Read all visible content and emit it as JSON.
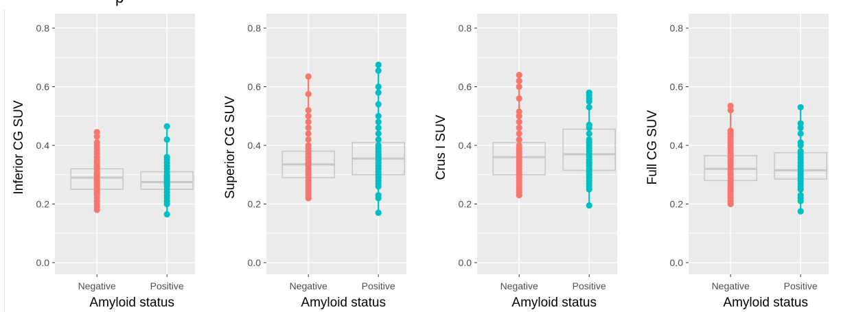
{
  "figure": {
    "header_fragment": "p"
  },
  "colors": {
    "negative": "#F8766D",
    "positive": "#00BFC4",
    "panel_bg": "#EBEBEB",
    "grid": "#FFFFFF",
    "box": "#C8C8C8",
    "tick_text": "#4D4D4D"
  },
  "chart_data": [
    {
      "type": "box-strip",
      "xlabel": "Amyloid status",
      "ylabel": "Inferior CG SUV",
      "categories": [
        "Negative",
        "Positive"
      ],
      "ylim": [
        0,
        0.8
      ],
      "yticks": [
        0.0,
        0.2,
        0.4,
        0.6,
        0.8
      ],
      "ytick_labels": [
        "0.0",
        "0.2",
        "0.4",
        "0.6",
        "0.8"
      ],
      "grid": true,
      "boxes": [
        {
          "category": "Negative",
          "q1": 0.25,
          "median": 0.29,
          "q3": 0.32
        },
        {
          "category": "Positive",
          "q1": 0.25,
          "median": 0.275,
          "q3": 0.31
        }
      ],
      "series": [
        {
          "category": "Negative",
          "values": [
            0.445,
            0.43,
            0.41,
            0.4,
            0.39,
            0.38,
            0.37,
            0.36,
            0.35,
            0.345,
            0.34,
            0.33,
            0.325,
            0.32,
            0.31,
            0.305,
            0.3,
            0.295,
            0.29,
            0.285,
            0.28,
            0.275,
            0.27,
            0.265,
            0.26,
            0.255,
            0.25,
            0.245,
            0.24,
            0.235,
            0.23,
            0.22,
            0.21,
            0.2,
            0.19,
            0.18
          ]
        },
        {
          "category": "Positive",
          "values": [
            0.465,
            0.42,
            0.36,
            0.35,
            0.34,
            0.33,
            0.32,
            0.31,
            0.3,
            0.295,
            0.29,
            0.285,
            0.28,
            0.275,
            0.27,
            0.265,
            0.26,
            0.25,
            0.24,
            0.23,
            0.22,
            0.21,
            0.2,
            0.165
          ]
        }
      ]
    },
    {
      "type": "box-strip",
      "xlabel": "Amyloid status",
      "ylabel": "Superior CG SUV",
      "categories": [
        "Negative",
        "Positive"
      ],
      "ylim": [
        0,
        0.8
      ],
      "yticks": [
        0.0,
        0.2,
        0.4,
        0.6,
        0.8
      ],
      "ytick_labels": [
        "0.0",
        "0.2",
        "0.4",
        "0.6",
        "0.8"
      ],
      "grid": true,
      "boxes": [
        {
          "category": "Negative",
          "q1": 0.29,
          "median": 0.335,
          "q3": 0.38
        },
        {
          "category": "Positive",
          "q1": 0.3,
          "median": 0.355,
          "q3": 0.41
        }
      ],
      "series": [
        {
          "category": "Negative",
          "values": [
            0.635,
            0.575,
            0.52,
            0.5,
            0.48,
            0.46,
            0.44,
            0.42,
            0.4,
            0.39,
            0.38,
            0.37,
            0.36,
            0.35,
            0.34,
            0.335,
            0.33,
            0.32,
            0.31,
            0.3,
            0.29,
            0.28,
            0.27,
            0.26,
            0.25,
            0.24,
            0.23,
            0.22
          ]
        },
        {
          "category": "Positive",
          "values": [
            0.675,
            0.655,
            0.6,
            0.58,
            0.54,
            0.5,
            0.48,
            0.46,
            0.44,
            0.42,
            0.4,
            0.39,
            0.38,
            0.37,
            0.36,
            0.35,
            0.34,
            0.33,
            0.32,
            0.31,
            0.3,
            0.29,
            0.28,
            0.27,
            0.26,
            0.23,
            0.22,
            0.17
          ]
        }
      ]
    },
    {
      "type": "box-strip",
      "xlabel": "Amyloid status",
      "ylabel": "Crus I SUV",
      "categories": [
        "Negative",
        "Positive"
      ],
      "ylim": [
        0,
        0.8
      ],
      "yticks": [
        0.0,
        0.2,
        0.4,
        0.6,
        0.8
      ],
      "ytick_labels": [
        "0.0",
        "0.2",
        "0.4",
        "0.6",
        "0.8"
      ],
      "grid": true,
      "boxes": [
        {
          "category": "Negative",
          "q1": 0.3,
          "median": 0.36,
          "q3": 0.41
        },
        {
          "category": "Positive",
          "q1": 0.315,
          "median": 0.37,
          "q3": 0.455
        }
      ],
      "series": [
        {
          "category": "Negative",
          "values": [
            0.64,
            0.62,
            0.6,
            0.56,
            0.515,
            0.5,
            0.48,
            0.46,
            0.44,
            0.42,
            0.4,
            0.39,
            0.38,
            0.37,
            0.36,
            0.35,
            0.34,
            0.33,
            0.32,
            0.31,
            0.3,
            0.29,
            0.28,
            0.27,
            0.26,
            0.25,
            0.24,
            0.23
          ]
        },
        {
          "category": "Positive",
          "values": [
            0.58,
            0.57,
            0.56,
            0.55,
            0.53,
            0.47,
            0.46,
            0.44,
            0.42,
            0.41,
            0.4,
            0.39,
            0.38,
            0.37,
            0.36,
            0.35,
            0.34,
            0.33,
            0.32,
            0.31,
            0.3,
            0.29,
            0.28,
            0.27,
            0.26,
            0.25,
            0.195
          ]
        }
      ]
    },
    {
      "type": "box-strip",
      "xlabel": "Amyloid status",
      "ylabel": "Full CG SUV",
      "categories": [
        "Negative",
        "Positive"
      ],
      "ylim": [
        0,
        0.8
      ],
      "yticks": [
        0.0,
        0.2,
        0.4,
        0.6,
        0.8
      ],
      "ytick_labels": [
        "0.0",
        "0.2",
        "0.4",
        "0.6",
        "0.8"
      ],
      "grid": true,
      "boxes": [
        {
          "category": "Negative",
          "q1": 0.28,
          "median": 0.32,
          "q3": 0.365
        },
        {
          "category": "Positive",
          "q1": 0.285,
          "median": 0.315,
          "q3": 0.375
        }
      ],
      "series": [
        {
          "category": "Negative",
          "values": [
            0.535,
            0.52,
            0.45,
            0.44,
            0.43,
            0.42,
            0.41,
            0.4,
            0.39,
            0.38,
            0.37,
            0.36,
            0.35,
            0.34,
            0.33,
            0.32,
            0.31,
            0.3,
            0.29,
            0.28,
            0.27,
            0.26,
            0.25,
            0.24,
            0.23,
            0.22,
            0.21,
            0.2
          ]
        },
        {
          "category": "Positive",
          "values": [
            0.53,
            0.475,
            0.46,
            0.44,
            0.41,
            0.4,
            0.38,
            0.37,
            0.36,
            0.35,
            0.34,
            0.33,
            0.32,
            0.31,
            0.3,
            0.29,
            0.28,
            0.27,
            0.26,
            0.25,
            0.23,
            0.22,
            0.21,
            0.175
          ]
        }
      ]
    }
  ]
}
